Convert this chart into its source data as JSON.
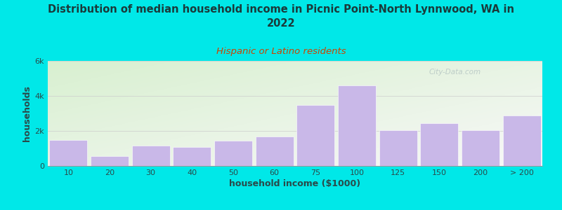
{
  "title": "Distribution of median household income in Picnic Point-North Lynnwood, WA in\n2022",
  "subtitle": "Hispanic or Latino residents",
  "xlabel": "household income ($1000)",
  "ylabel": "households",
  "bar_labels": [
    "10",
    "20",
    "30",
    "40",
    "50",
    "60",
    "75",
    "100",
    "125",
    "150",
    "200",
    "> 200"
  ],
  "bar_values": [
    1500,
    550,
    1150,
    1100,
    1450,
    1700,
    3500,
    4600,
    2050,
    2450,
    2050,
    2900
  ],
  "bar_color": "#c9b8e8",
  "background_outer": "#00e8e8",
  "background_plot_top_left": "#d8f0d0",
  "background_plot_bottom_right": "#f8f8f8",
  "title_color": "#1a3a3a",
  "subtitle_color": "#cc4400",
  "axis_label_color": "#2a4a4a",
  "tick_color": "#2a4a4a",
  "ylim": [
    0,
    6000
  ],
  "yticks": [
    0,
    2000,
    4000,
    6000
  ],
  "ytick_labels": [
    "0",
    "2k",
    "4k",
    "6k"
  ],
  "title_fontsize": 10.5,
  "subtitle_fontsize": 9.5,
  "label_fontsize": 9,
  "watermark_text": "City-Data.com",
  "watermark_color": "#b0c0c0"
}
